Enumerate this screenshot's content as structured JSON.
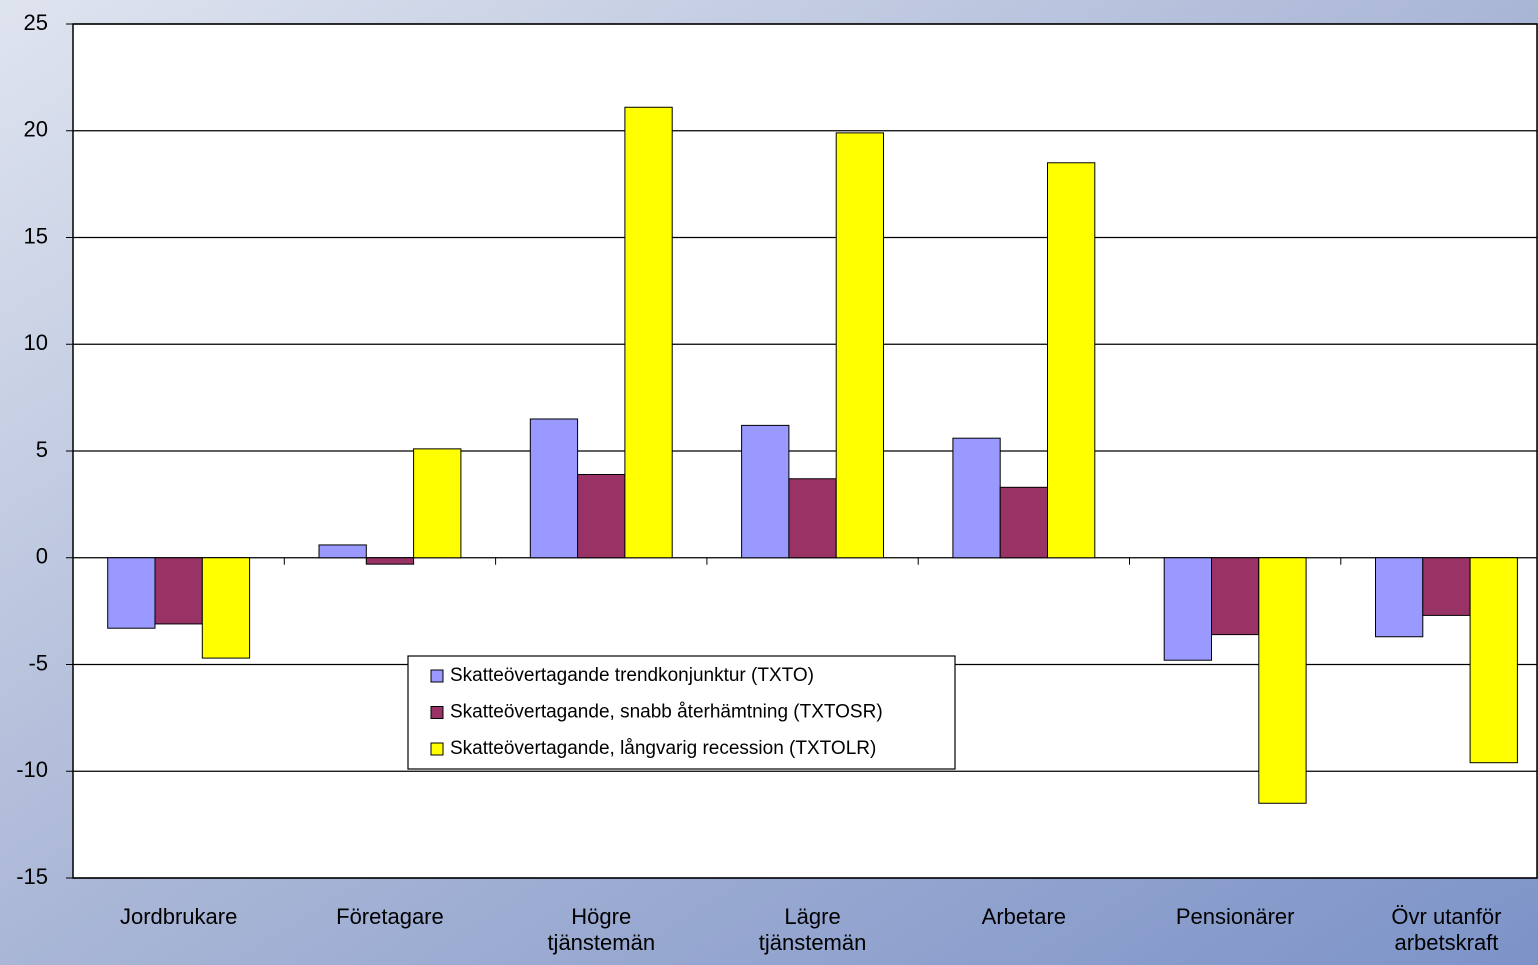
{
  "chart_data": {
    "type": "bar",
    "categories": [
      "Jordbrukare",
      "Företagare",
      "Högre\ntjänstemän",
      "Lägre\ntjänstemän",
      "Arbetare",
      "Pensionärer",
      "Övr utanför\narbetskraft"
    ],
    "series": [
      {
        "name": "Skatteövertagande trendkonjunktur (TXTO)",
        "color": "#9999ff",
        "values": [
          -3.3,
          0.6,
          6.5,
          6.2,
          5.6,
          -4.8,
          -3.7
        ]
      },
      {
        "name": "Skatteövertagande, snabb återhämtning (TXTOSR)",
        "color": "#993366",
        "values": [
          -3.1,
          -0.3,
          3.9,
          3.7,
          3.3,
          -3.6,
          -2.7
        ]
      },
      {
        "name": "Skatteövertagande, långvarig recession (TXTOLR)",
        "color": "#ffff00",
        "values": [
          -4.7,
          5.1,
          21.1,
          19.9,
          18.5,
          -11.5,
          -9.6
        ]
      }
    ],
    "ylim": [
      -15,
      25
    ],
    "yticks": [
      -15,
      -10,
      -5,
      0,
      5,
      10,
      15,
      20,
      25
    ],
    "grid": true
  }
}
